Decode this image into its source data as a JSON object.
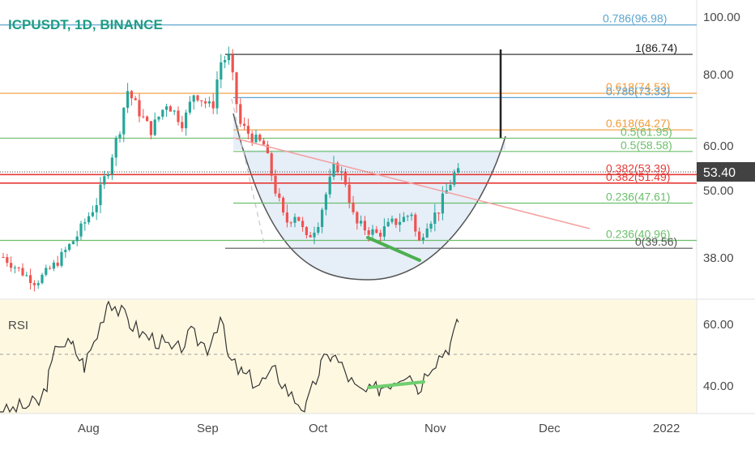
{
  "header": {
    "title": "ICPUSDT, 1D, BINANCE"
  },
  "price_badge": {
    "value": "53.40",
    "color": "#424242"
  },
  "price_axis": {
    "ticks": [
      "100.00",
      "80.00",
      "60.00",
      "50.00",
      "38.00"
    ]
  },
  "rsi_panel": {
    "label": "RSI",
    "ticks": [
      "60.00",
      "40.00"
    ]
  },
  "time_axis": {
    "labels": [
      "Aug",
      "Sep",
      "Oct",
      "Nov",
      "Dec",
      "2022"
    ]
  },
  "fib_levels": [
    {
      "label": "0.786(96.98)",
      "value": 96.98,
      "color": "#5ba4cf"
    },
    {
      "label": "1(86.74)",
      "value": 86.74,
      "color": "#222222"
    },
    {
      "label": "0.618(74.53)",
      "value": 74.53,
      "color": "#f29b38"
    },
    {
      "label": "0.786(73.33)",
      "value": 73.33,
      "color": "#5ba4cf"
    },
    {
      "label": "0.618(64.27)",
      "value": 64.27,
      "color": "#f29b38"
    },
    {
      "label": "0.5(61.95)",
      "value": 61.95,
      "color": "#6cbf6c"
    },
    {
      "label": "0.5(58.58)",
      "value": 58.58,
      "color": "#6cbf6c"
    },
    {
      "label": "0.382(53.39)",
      "value": 53.39,
      "color": "#e53935"
    },
    {
      "label": "0.382(51.49)",
      "value": 51.49,
      "color": "#e53935"
    },
    {
      "label": "0.236(47.61)",
      "value": 47.61,
      "color": "#6cbf6c"
    },
    {
      "label": "0.236(40.96)",
      "value": 40.96,
      "color": "#6cbf6c"
    },
    {
      "label": "0(39.56)",
      "value": 39.56,
      "color": "#555555"
    }
  ],
  "colors": {
    "up": "#26a69a",
    "down": "#ef5350",
    "rsi_line": "#333333",
    "divergence": "#4caf50",
    "rsi_band": "#fff8e1"
  },
  "chart_data": {
    "type": "candlestick",
    "symbol": "ICPUSDT",
    "interval": "1D",
    "exchange": "BINANCE",
    "last_price": 53.4,
    "price_range": [
      33,
      104
    ],
    "approx_close_path": [
      {
        "date": "early Jul",
        "close": 38
      },
      {
        "date": "late Jul",
        "close": 34
      },
      {
        "date": "Aug 1",
        "close": 42
      },
      {
        "date": "mid Aug",
        "close": 64
      },
      {
        "date": "Aug 20",
        "close": 75
      },
      {
        "date": "late Aug",
        "close": 66
      },
      {
        "date": "Sep 3",
        "close": 84
      },
      {
        "date": "Sep 8",
        "close": 64
      },
      {
        "date": "mid Sep",
        "close": 60
      },
      {
        "date": "late Sep",
        "close": 44
      },
      {
        "date": "Oct 1",
        "close": 42
      },
      {
        "date": "Oct 7",
        "close": 55
      },
      {
        "date": "mid Oct",
        "close": 47
      },
      {
        "date": "late Oct",
        "close": 43
      },
      {
        "date": "Oct 31",
        "close": 40
      },
      {
        "date": "Nov 5",
        "close": 50
      },
      {
        "date": "Nov 8",
        "close": 53.4
      }
    ],
    "rsi_range": [
      32,
      70
    ],
    "rsi_ticks": [
      60,
      40
    ]
  }
}
